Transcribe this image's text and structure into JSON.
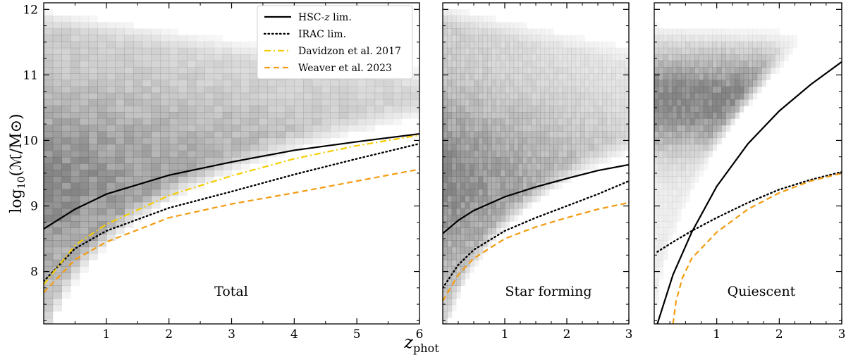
{
  "chart_data": {
    "type": "heatmap",
    "ylabel": "log10(M/M⊙)",
    "ylabel_main": "log",
    "ylabel_sub": "10",
    "ylabel_rest": "(ℳ/M⊙)",
    "xlabel_main": "z",
    "xlabel_sub": "phot",
    "ylim": [
      7.2,
      12.1
    ],
    "yticks": [
      8,
      9,
      10,
      11,
      12
    ],
    "colors": {
      "hsc": "#000000",
      "irac": "#000000",
      "davidzon": "#f5cc00",
      "weaver": "#f39c12",
      "density": "#6e6e6e"
    },
    "legend": [
      {
        "label": "HSC-z lim.",
        "label_pre": "HSC-",
        "label_ital": "z",
        "label_post": " lim.",
        "style": "solid",
        "color": "#000000"
      },
      {
        "label": "IRAC lim.",
        "style": "dotted",
        "color": "#000000"
      },
      {
        "label": "Davidzon et al. 2017",
        "style": "dashdot",
        "color": "#f5cc00"
      },
      {
        "label": "Weaver et al. 2023",
        "style": "dashed",
        "color": "#f39c12"
      }
    ],
    "panels": [
      {
        "name": "Total",
        "xlim": [
          0,
          6
        ],
        "xticks": [
          1,
          2,
          3,
          4,
          5,
          6
        ],
        "curves": {
          "hsc": {
            "x": [
              0,
              0.5,
              1,
              2,
              3,
              4,
              5,
              6
            ],
            "y": [
              8.65,
              8.95,
              9.18,
              9.47,
              9.67,
              9.85,
              9.98,
              10.1
            ]
          },
          "irac": {
            "x": [
              0,
              0.5,
              1,
              2,
              3,
              4,
              5,
              6
            ],
            "y": [
              7.85,
              8.35,
              8.62,
              8.97,
              9.22,
              9.48,
              9.72,
              9.95
            ]
          },
          "davidzon": {
            "x": [
              0,
              0.5,
              1,
              2,
              3,
              4,
              5,
              6
            ],
            "y": [
              7.8,
              8.4,
              8.72,
              9.16,
              9.46,
              9.72,
              9.92,
              10.08
            ]
          },
          "weaver": {
            "x": [
              0,
              0.5,
              1,
              2,
              3,
              4,
              5,
              6
            ],
            "y": [
              7.68,
              8.18,
              8.45,
              8.82,
              9.03,
              9.2,
              9.38,
              9.56
            ]
          }
        }
      },
      {
        "name": "Star forming",
        "xlim": [
          0,
          3
        ],
        "xticks": [
          1,
          2,
          3
        ],
        "curves": {
          "hsc": {
            "x": [
              0,
              0.25,
              0.5,
              1,
              1.5,
              2,
              2.5,
              3
            ],
            "y": [
              8.58,
              8.78,
              8.93,
              9.14,
              9.29,
              9.42,
              9.54,
              9.63
            ]
          },
          "irac": {
            "x": [
              0,
              0.25,
              0.5,
              1,
              1.5,
              2,
              2.5,
              3
            ],
            "y": [
              7.75,
              8.1,
              8.33,
              8.62,
              8.82,
              9.0,
              9.18,
              9.38
            ]
          },
          "weaver": {
            "x": [
              0,
              0.25,
              0.5,
              1,
              1.5,
              2,
              2.5,
              3
            ],
            "y": [
              7.55,
              7.95,
              8.2,
              8.5,
              8.68,
              8.82,
              8.95,
              9.05
            ]
          }
        }
      },
      {
        "name": "Quiescent",
        "xlim": [
          0,
          3
        ],
        "xticks": [
          1,
          2,
          3
        ],
        "curves": {
          "hsc": {
            "x": [
              0.05,
              0.3,
              0.6,
              1,
              1.5,
              2,
              2.5,
              3
            ],
            "y": [
              7.2,
              7.95,
              8.6,
              9.3,
              9.95,
              10.45,
              10.85,
              11.2
            ]
          },
          "irac": {
            "x": [
              0.05,
              0.3,
              0.6,
              1,
              1.5,
              2,
              2.5,
              3
            ],
            "y": [
              8.3,
              8.45,
              8.62,
              8.82,
              9.05,
              9.25,
              9.4,
              9.52
            ]
          },
          "weaver": {
            "x": [
              0.3,
              0.35,
              0.45,
              0.6,
              1,
              1.5,
              2,
              2.5,
              3
            ],
            "y": [
              7.2,
              7.55,
              7.9,
              8.2,
              8.6,
              8.95,
              9.2,
              9.38,
              9.5
            ]
          }
        }
      }
    ]
  }
}
